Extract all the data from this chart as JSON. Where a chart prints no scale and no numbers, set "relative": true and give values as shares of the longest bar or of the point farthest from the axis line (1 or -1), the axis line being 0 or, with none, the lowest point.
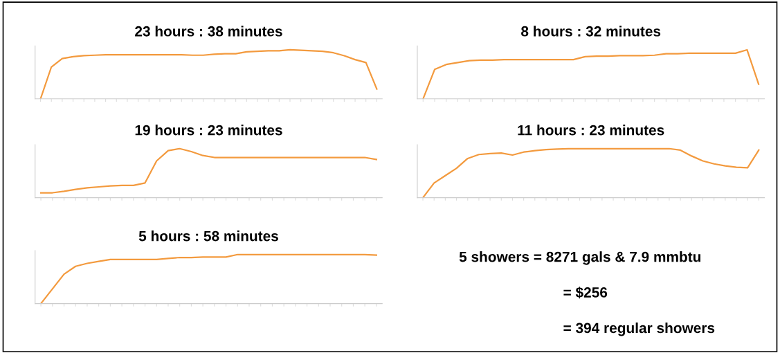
{
  "chart_data": [
    {
      "type": "line",
      "title": "23 hours : 38 minutes",
      "relative": true,
      "categories": [
        null,
        null,
        null,
        null,
        null,
        null,
        null,
        null,
        null,
        null,
        null,
        null,
        null,
        null,
        null,
        null,
        null,
        null,
        null,
        null,
        null,
        null,
        null,
        null,
        null,
        null,
        null,
        null,
        null,
        null,
        null,
        null
      ],
      "series": [
        {
          "color": "#f39a3e",
          "values": [
            0,
            0.65,
            0.82,
            0.86,
            0.88,
            0.89,
            0.9,
            0.9,
            0.9,
            0.9,
            0.9,
            0.9,
            0.9,
            0.9,
            0.89,
            0.89,
            0.91,
            0.92,
            0.92,
            0.96,
            0.97,
            0.98,
            0.98,
            1.0,
            0.99,
            0.98,
            0.97,
            0.94,
            0.88,
            0.8,
            0.74,
            0.2
          ]
        }
      ]
    },
    {
      "type": "line",
      "title": "8 hours : 32 minutes",
      "relative": true,
      "categories": [
        null,
        null,
        null,
        null,
        null,
        null,
        null,
        null,
        null,
        null,
        null,
        null,
        null,
        null,
        null,
        null,
        null,
        null,
        null,
        null,
        null,
        null,
        null,
        null,
        null,
        null,
        null,
        null,
        null,
        null
      ],
      "series": [
        {
          "color": "#f39a3e",
          "values": [
            0,
            0.6,
            0.7,
            0.74,
            0.78,
            0.79,
            0.79,
            0.8,
            0.8,
            0.8,
            0.8,
            0.8,
            0.8,
            0.8,
            0.86,
            0.87,
            0.87,
            0.88,
            0.88,
            0.88,
            0.89,
            0.92,
            0.92,
            0.93,
            0.93,
            0.93,
            0.93,
            0.93,
            1.0,
            0.3
          ]
        }
      ]
    },
    {
      "type": "line",
      "title": "19 hours : 23 minutes",
      "relative": true,
      "categories": [
        null,
        null,
        null,
        null,
        null,
        null,
        null,
        null,
        null,
        null,
        null,
        null,
        null,
        null,
        null,
        null,
        null,
        null,
        null,
        null,
        null,
        null,
        null,
        null,
        null,
        null,
        null,
        null,
        null,
        null
      ],
      "series": [
        {
          "color": "#f39a3e",
          "values": [
            0.1,
            0.1,
            0.13,
            0.17,
            0.2,
            0.22,
            0.24,
            0.25,
            0.25,
            0.3,
            0.75,
            0.96,
            1.0,
            0.94,
            0.86,
            0.82,
            0.82,
            0.82,
            0.82,
            0.82,
            0.82,
            0.82,
            0.82,
            0.82,
            0.82,
            0.82,
            0.82,
            0.82,
            0.82,
            0.78
          ]
        }
      ]
    },
    {
      "type": "line",
      "title": "11 hours : 23 minutes",
      "relative": true,
      "categories": [
        null,
        null,
        null,
        null,
        null,
        null,
        null,
        null,
        null,
        null,
        null,
        null,
        null,
        null,
        null,
        null,
        null,
        null,
        null,
        null,
        null,
        null,
        null,
        null,
        null,
        null,
        null,
        null,
        null,
        null,
        null
      ],
      "series": [
        {
          "color": "#f39a3e",
          "values": [
            0,
            0.3,
            0.45,
            0.6,
            0.8,
            0.88,
            0.9,
            0.91,
            0.87,
            0.93,
            0.96,
            0.98,
            0.99,
            1.0,
            1.0,
            1.0,
            1.0,
            1.0,
            1.0,
            1.0,
            1.0,
            1.0,
            1.0,
            0.97,
            0.85,
            0.75,
            0.69,
            0.65,
            0.62,
            0.61,
            0.97
          ]
        }
      ]
    },
    {
      "type": "line",
      "title": "5 hours : 58 minutes",
      "relative": true,
      "categories": [
        null,
        null,
        null,
        null,
        null,
        null,
        null,
        null,
        null,
        null,
        null,
        null,
        null,
        null,
        null,
        null,
        null,
        null,
        null,
        null,
        null,
        null,
        null,
        null,
        null,
        null,
        null,
        null,
        null,
        null
      ],
      "series": [
        {
          "color": "#f39a3e",
          "values": [
            0,
            0.3,
            0.6,
            0.76,
            0.82,
            0.86,
            0.9,
            0.9,
            0.9,
            0.9,
            0.9,
            0.92,
            0.94,
            0.94,
            0.95,
            0.95,
            0.95,
            1.0,
            1.0,
            1.0,
            1.0,
            1.0,
            1.0,
            1.0,
            1.0,
            1.0,
            1.0,
            1.0,
            1.0,
            0.99
          ]
        }
      ]
    },
    {
      "type": "other",
      "annotations": [
        "5 showers = 8271 gals & 7.9 mmbtu",
        "= $256",
        "= 394 regular showers"
      ]
    }
  ]
}
